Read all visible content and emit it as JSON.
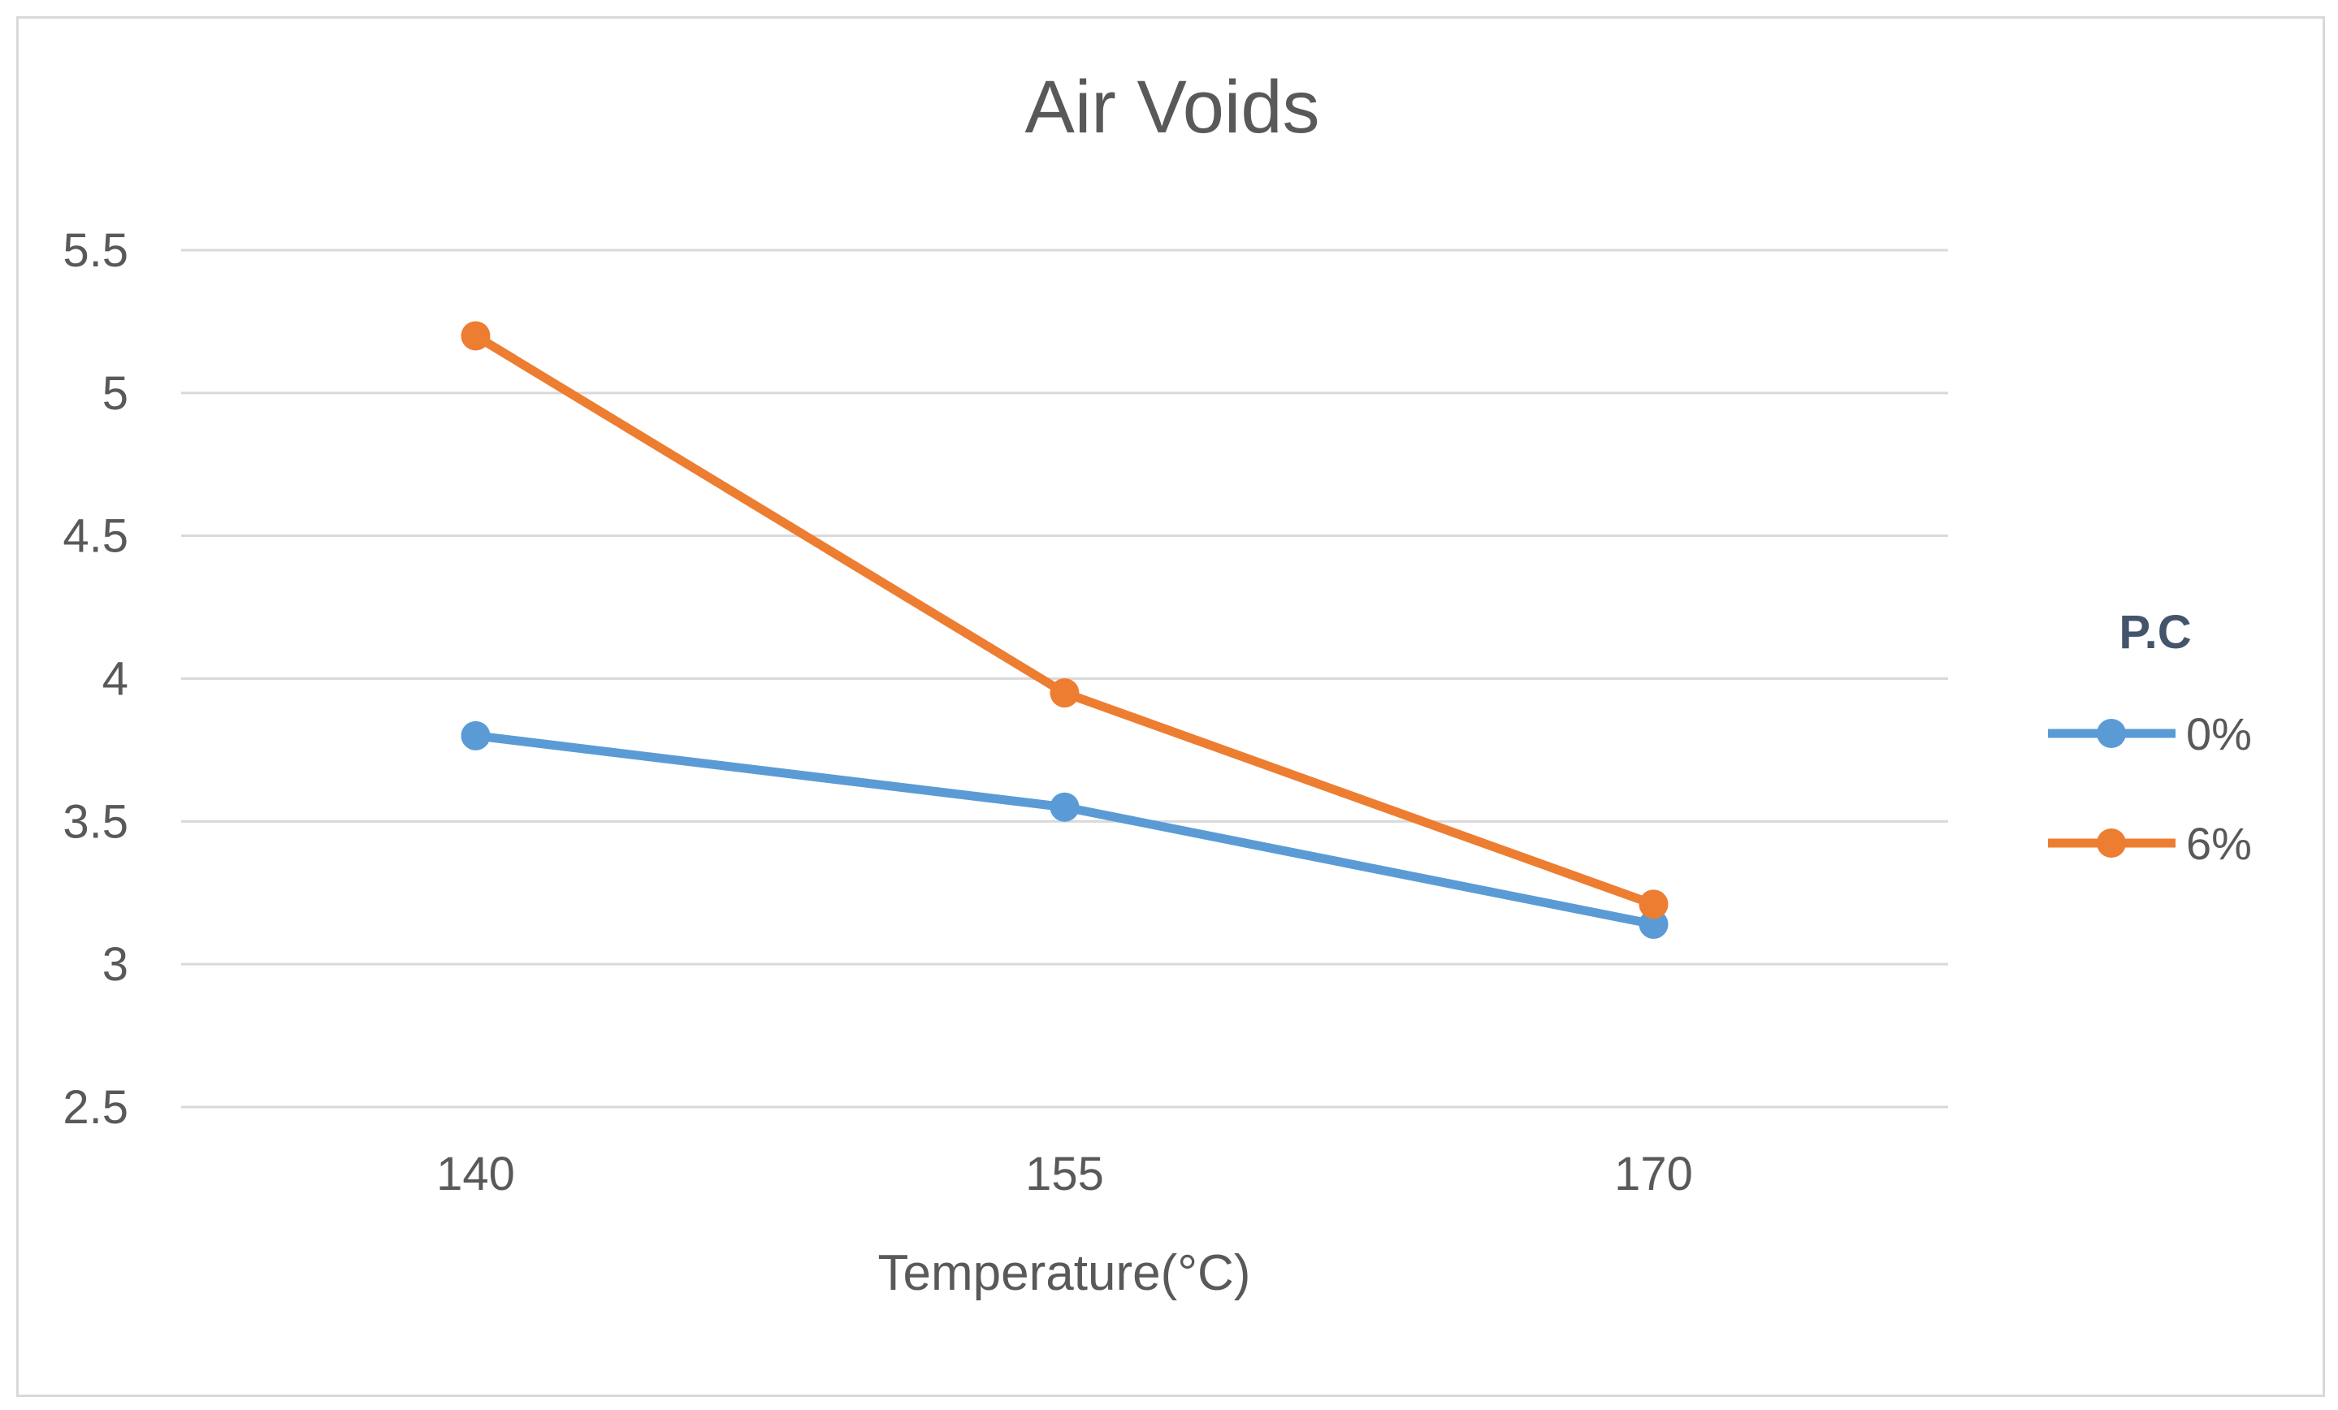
{
  "chart_data": {
    "type": "line",
    "title": "Air Voids",
    "xlabel": "Temperature(°C)",
    "ylabel": "",
    "categories": [
      "140",
      "155",
      "170"
    ],
    "ylim": [
      2.5,
      5.5
    ],
    "yticks": [
      "2.5",
      "3",
      "3.5",
      "4",
      "4.5",
      "5",
      "5.5"
    ],
    "grid": true,
    "legend": {
      "title": "P.C",
      "position": "right"
    },
    "series": [
      {
        "name": "0%",
        "values": [
          3.8,
          3.55,
          3.14
        ],
        "color": "#5b9bd5"
      },
      {
        "name": "6%",
        "values": [
          5.2,
          3.95,
          3.21
        ],
        "color": "#ed7d31"
      }
    ]
  }
}
